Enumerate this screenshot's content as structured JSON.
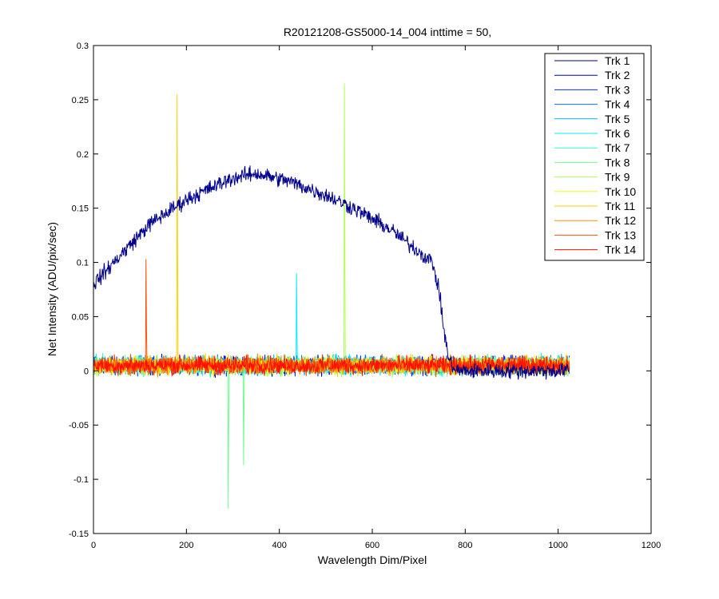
{
  "chart_data": {
    "type": "line",
    "title": "R20121208-GS5000-14_004 inttime = 50,",
    "xlabel": "Wavelength Dim/Pixel",
    "ylabel": "Net Intensity (ADU/pix/sec)",
    "xlim": [
      0,
      1200
    ],
    "ylim": [
      -0.15,
      0.3
    ],
    "xticks": [
      0,
      200,
      400,
      600,
      800,
      1000,
      1200
    ],
    "xtick_labels": [
      "0",
      "200",
      "400",
      "600",
      "800",
      "1000",
      "1200"
    ],
    "yticks": [
      -0.15,
      -0.1,
      -0.05,
      0,
      0.05,
      0.1,
      0.15,
      0.2,
      0.25,
      0.3
    ],
    "ytick_labels": [
      "-0.15",
      "-0.1",
      "-0.05",
      "0",
      "0.05",
      "0.1",
      "0.15",
      "0.2",
      "0.25",
      "0.3"
    ],
    "grid": false,
    "legend_position": "top-right",
    "x_range_points": [
      1,
      1024
    ],
    "noise_amplitude": 0.012,
    "series": [
      {
        "name": "Trk 1",
        "color": "#00008f",
        "profile": "arc",
        "arc_points": [
          [
            0,
            0.08
          ],
          [
            120,
            0.135
          ],
          [
            200,
            0.158
          ],
          [
            300,
            0.178
          ],
          [
            350,
            0.182
          ],
          [
            420,
            0.175
          ],
          [
            500,
            0.162
          ],
          [
            560,
            0.15
          ],
          [
            640,
            0.13
          ],
          [
            700,
            0.11
          ],
          [
            730,
            0.1
          ],
          [
            745,
            0.07
          ],
          [
            755,
            0.035
          ],
          [
            765,
            0.01
          ],
          [
            780,
            0.0
          ],
          [
            1024,
            0.0
          ]
        ],
        "spikes": []
      },
      {
        "name": "Trk 2",
        "color": "#0000bf",
        "profile": "noise",
        "spikes": []
      },
      {
        "name": "Trk 3",
        "color": "#0030ff",
        "profile": "noise",
        "spikes": []
      },
      {
        "name": "Trk 4",
        "color": "#0070ff",
        "profile": "noise",
        "spikes": []
      },
      {
        "name": "Trk 5",
        "color": "#00b0ff",
        "profile": "noise",
        "spikes": []
      },
      {
        "name": "Trk 6",
        "color": "#00efff",
        "profile": "noise",
        "spikes": [
          [
            437,
            0.09
          ]
        ]
      },
      {
        "name": "Trk 7",
        "color": "#30ffcf",
        "profile": "noise",
        "spikes": []
      },
      {
        "name": "Trk 8",
        "color": "#70ff8f",
        "profile": "noise",
        "spikes": [
          [
            290,
            -0.127
          ],
          [
            323,
            -0.087
          ]
        ]
      },
      {
        "name": "Trk 9",
        "color": "#afff50",
        "profile": "noise",
        "spikes": [
          [
            540,
            0.265
          ]
        ]
      },
      {
        "name": "Trk 10",
        "color": "#efff10",
        "profile": "noise",
        "spikes": []
      },
      {
        "name": "Trk 11",
        "color": "#ffcf00",
        "profile": "noise",
        "spikes": [
          [
            180,
            0.255
          ]
        ]
      },
      {
        "name": "Trk 12",
        "color": "#ff8f00",
        "profile": "noise",
        "spikes": []
      },
      {
        "name": "Trk 13",
        "color": "#ff5000",
        "profile": "noise",
        "spikes": [
          [
            113,
            0.103
          ]
        ]
      },
      {
        "name": "Trk 14",
        "color": "#ff1000",
        "profile": "noise",
        "spikes": []
      }
    ]
  }
}
